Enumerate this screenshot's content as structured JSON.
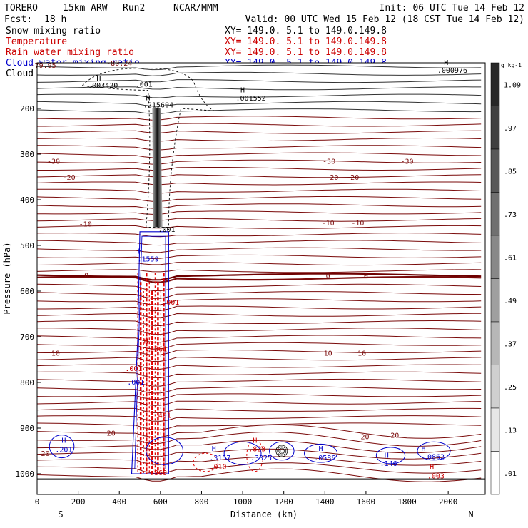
{
  "header": {
    "model": "TORERO",
    "run_desc": "15km ARW",
    "run": "Run2",
    "org": "NCAR/MMM",
    "init": "Init: 06 UTC Tue 14 Feb 12",
    "fcst": "Fcst:",
    "fcst_hours": "18 h",
    "valid": "Valid: 00 UTC Wed 15 Feb 12 (18 CST Tue 14 Feb 12)"
  },
  "legend": [
    {
      "label": "Snow mixing ratio",
      "xy": "XY= 149.0.  5.1 to 149.0.149.8",
      "color": "#000000",
      "xy_color": "#000000"
    },
    {
      "label": "Temperature",
      "xy": "XY= 149.0.  5.1 to 149.0.149.8",
      "color": "#cc0000",
      "xy_color": "#cc0000"
    },
    {
      "label": "Rain water mixing ratio",
      "xy": "XY= 149.0.  5.1 to 149.0.149.8",
      "color": "#cc0000",
      "xy_color": "#cc0000"
    },
    {
      "label": "Cloud water mixing ratio",
      "xy": "XY= 149.0.  5.1 to 149.0.149.8",
      "color": "#0000cc",
      "xy_color": "#0000cc"
    },
    {
      "label": "Cloud ice mixing ratio",
      "xy": "XY= 149.0.  5.1 to 149.0.149.8",
      "color": "#000000",
      "xy_color": "#000000"
    }
  ],
  "chart_data": {
    "type": "contour cross-section",
    "xlabel": "Distance (km)",
    "ylabel": "Pressure (hPa)",
    "xlim": [
      0,
      2180
    ],
    "ylim": [
      1050,
      100
    ],
    "x_ticks": [
      0,
      200,
      400,
      600,
      800,
      1000,
      1200,
      1400,
      1600,
      1800,
      2000
    ],
    "y_ticks": [
      200,
      300,
      400,
      500,
      600,
      700,
      800,
      900,
      1000
    ],
    "x_end_labels": [
      "S",
      "N"
    ],
    "ground_p": 1012,
    "temperature_isotherms": [
      {
        "label": "-30",
        "p": 322
      },
      {
        "label": "-20",
        "p": 370
      },
      {
        "label": "-10",
        "p": 460
      },
      {
        "label": "0",
        "p": 565
      },
      {
        "label": "10",
        "p": 735
      },
      {
        "label": "20",
        "p": 930
      }
    ],
    "temperature_labels": [
      {
        "text": "-30",
        "x": 80,
        "p": 315
      },
      {
        "text": "-20",
        "x": 155,
        "p": 350
      },
      {
        "text": "-10",
        "x": 235,
        "p": 452
      },
      {
        "text": "0",
        "x": 240,
        "p": 565
      },
      {
        "text": "10",
        "x": 90,
        "p": 735
      },
      {
        "text": "20",
        "x": 360,
        "p": 910
      },
      {
        "text": "-30",
        "x": 1420,
        "p": 315
      },
      {
        "text": "-20",
        "x": 1435,
        "p": 350
      },
      {
        "text": "-10",
        "x": 1415,
        "p": 450
      },
      {
        "text": "0",
        "x": 1415,
        "p": 566
      },
      {
        "text": "10",
        "x": 1415,
        "p": 735
      },
      {
        "text": "20",
        "x": 1595,
        "p": 918
      },
      {
        "text": "-30",
        "x": 1800,
        "p": 315
      },
      {
        "text": "-20",
        "x": 1535,
        "p": 350
      },
      {
        "text": "-10",
        "x": 1560,
        "p": 450
      },
      {
        "text": "0",
        "x": 1600,
        "p": 566
      },
      {
        "text": "10",
        "x": 1580,
        "p": 735
      },
      {
        "text": "20",
        "x": 1740,
        "p": 915
      },
      {
        "text": "20",
        "x": 40,
        "p": 955
      },
      {
        "text": "-79.95",
        "x": 30,
        "p": 105
      },
      {
        "text": "-80.24",
        "x": 400,
        "p": 100
      }
    ],
    "field_labels": [
      {
        "text": "H",
        "x": 300,
        "p": 140,
        "color": "#000000"
      },
      {
        "text": ".003420",
        "x": 320,
        "p": 155,
        "color": "#000000"
      },
      {
        "text": ".001",
        "x": 520,
        "p": 152,
        "color": "#000000"
      },
      {
        "text": "H",
        "x": 1000,
        "p": 165,
        "color": "#000000"
      },
      {
        "text": ".001552",
        "x": 1040,
        "p": 183,
        "color": "#000000"
      },
      {
        "text": "H",
        "x": 540,
        "p": 182,
        "color": "#000000"
      },
      {
        "text": ".215604",
        "x": 590,
        "p": 198,
        "color": "#000000"
      },
      {
        "text": ".001",
        "x": 630,
        "p": 470,
        "color": "#000000"
      },
      {
        "text": "H",
        "x": 1990,
        "p": 105,
        "color": "#000000"
      },
      {
        "text": ".000976",
        "x": 2020,
        "p": 122,
        "color": "#000000"
      },
      {
        "text": "H",
        "x": 500,
        "p": 518,
        "color": "#0000cc"
      },
      {
        "text": ".1559",
        "x": 540,
        "p": 535,
        "color": "#0000cc"
      },
      {
        "text": ".001",
        "x": 650,
        "p": 630,
        "color": "#cc0000"
      },
      {
        "text": "H",
        "x": 530,
        "p": 715,
        "color": "#cc0000"
      },
      {
        "text": ".2661",
        "x": 580,
        "p": 732,
        "color": "#cc0000"
      },
      {
        "text": ".001",
        "x": 470,
        "p": 775,
        "color": "#cc0000"
      },
      {
        "text": ".001",
        "x": 480,
        "p": 805,
        "color": "#0000cc"
      },
      {
        "text": ".401",
        "x": 610,
        "p": 877,
        "color": "#cc0000"
      },
      {
        "text": "H",
        "x": 130,
        "p": 932,
        "color": "#0000cc"
      },
      {
        "text": ".201",
        "x": 130,
        "p": 952,
        "color": "#0000cc"
      },
      {
        "text": "H",
        "x": 860,
        "p": 950,
        "color": "#0000cc"
      },
      {
        "text": ".3157",
        "x": 890,
        "p": 970,
        "color": "#0000cc"
      },
      {
        "text": "H",
        "x": 1060,
        "p": 932,
        "color": "#cc0000"
      },
      {
        "text": ".823",
        "x": 1070,
        "p": 951,
        "color": "#cc0000"
      },
      {
        "text": ".3325",
        "x": 1090,
        "p": 970,
        "color": "#0000cc"
      },
      {
        "text": "H",
        "x": 1380,
        "p": 950,
        "color": "#0000cc"
      },
      {
        "text": ".0586",
        "x": 1400,
        "p": 970,
        "color": "#0000cc"
      },
      {
        "text": "H",
        "x": 1700,
        "p": 965,
        "color": "#0000cc"
      },
      {
        "text": ".146",
        "x": 1710,
        "p": 983,
        "color": "#0000cc"
      },
      {
        "text": "H",
        "x": 1880,
        "p": 950,
        "color": "#0000cc"
      },
      {
        "text": ".0862",
        "x": 1930,
        "p": 968,
        "color": "#0000cc"
      },
      {
        "text": "H",
        "x": 570,
        "p": 985,
        "color": "#cc0000"
      },
      {
        "text": ".868",
        "x": 590,
        "p": 1003,
        "color": "#cc0000"
      },
      {
        "text": ".010",
        "x": 880,
        "p": 990,
        "color": "#cc0000"
      },
      {
        "text": "H",
        "x": 1920,
        "p": 990,
        "color": "#cc0000"
      },
      {
        "text": ".003",
        "x": 1940,
        "p": 1010,
        "color": "#cc0000"
      }
    ],
    "colorbar": {
      "unit": "g kg-1",
      "ticks": [
        "1.09",
        ".97",
        ".85",
        ".73",
        ".61",
        ".49",
        ".37",
        ".25",
        ".13",
        ".01"
      ]
    }
  }
}
